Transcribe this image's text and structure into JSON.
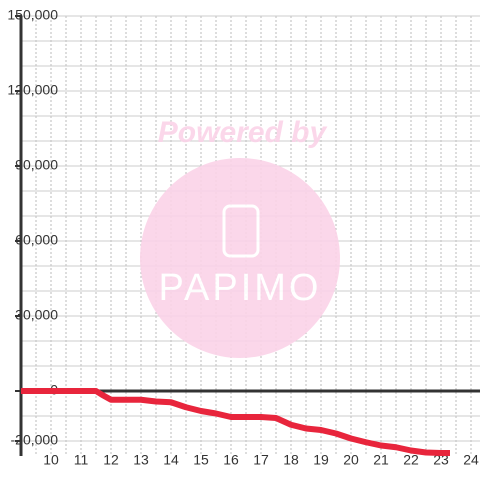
{
  "chart_data": {
    "type": "line",
    "watermark": {
      "title": "Powered by",
      "brand": "PAPIMO"
    },
    "x": [
      9,
      11.5,
      11.7,
      12,
      12.5,
      13,
      13.5,
      14,
      14.5,
      15,
      15.5,
      16,
      16.5,
      17,
      17.5,
      18,
      18.5,
      19,
      19.5,
      20,
      20.5,
      21,
      21.5,
      22,
      22.5,
      23,
      23.3
    ],
    "series": [
      {
        "color": "#e8253c",
        "values": [
          0,
          0,
          -1500,
          -3500,
          -3500,
          -3500,
          -4200,
          -4500,
          -6500,
          -8000,
          -9000,
          -10400,
          -10400,
          -10400,
          -10800,
          -13500,
          -15000,
          -15600,
          -17000,
          -19000,
          -20500,
          -21800,
          -22500,
          -23800,
          -24600,
          -24800,
          -24800
        ]
      }
    ],
    "xlim": [
      9,
      24.3
    ],
    "ylim": [
      -26000,
      150000
    ],
    "xticks": [
      10,
      11,
      12,
      13,
      14,
      15,
      16,
      17,
      18,
      19,
      20,
      21,
      22,
      23,
      24
    ],
    "xgrid": [
      9.5,
      10,
      10.5,
      11,
      11.5,
      12,
      12.5,
      13,
      13.5,
      14,
      14.5,
      15,
      15.5,
      16,
      16.5,
      17,
      17.5,
      18,
      18.5,
      19,
      19.5,
      20,
      20.5,
      21,
      21.5,
      22,
      22.5,
      23,
      23.5,
      24
    ],
    "yticks": [
      {
        "value": -20000,
        "label": "-20,000"
      },
      0,
      {
        "value": 30000,
        "label": "30,000"
      },
      {
        "value": 60000,
        "label": "60,000"
      },
      {
        "value": 90000,
        "label": "90,000"
      },
      {
        "value": 120000,
        "label": "120,000"
      },
      {
        "value": 150000,
        "label": "150,000"
      }
    ],
    "ygrid": [
      -20000,
      -10000,
      10000,
      20000,
      30000,
      40000,
      50000,
      60000,
      70000,
      80000,
      90000,
      100000,
      110000,
      120000,
      130000,
      140000,
      150000
    ],
    "grid": true
  }
}
